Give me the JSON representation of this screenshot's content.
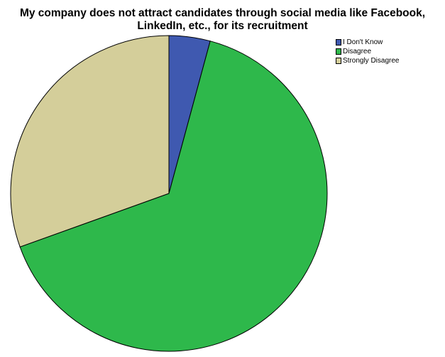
{
  "chart_data": {
    "type": "pie",
    "title_lines": [
      "My company does not attract candidates through social media like Facebook,",
      "LinkedIn, etc., for its recruitment"
    ],
    "categories": [
      "I Don't Know",
      "Disagree",
      "Strongly Disagree"
    ],
    "values": [
      4.2,
      65.3,
      30.5
    ],
    "colors": [
      "#3f59b0",
      "#2eb84b",
      "#d4ce9a"
    ],
    "start_angle_deg": 0,
    "direction": "clockwise",
    "legend_position": "top-right"
  }
}
